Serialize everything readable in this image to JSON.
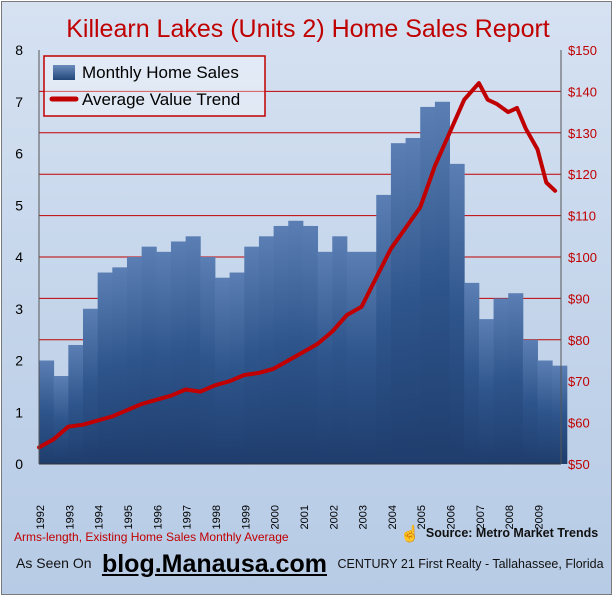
{
  "chart_data": {
    "type": "bar+line",
    "title": "Killearn Lakes (Units 2) Home Sales Report",
    "left_axis": {
      "ylim": [
        0,
        8
      ],
      "ticks": [
        "0",
        "1",
        "2",
        "3",
        "4",
        "5",
        "6",
        "7",
        "8"
      ]
    },
    "right_axis": {
      "ylim": [
        50,
        150
      ],
      "ticks": [
        "$50",
        "$60",
        "$70",
        "$80",
        "$90",
        "$100",
        "$110",
        "$120",
        "$130",
        "$140",
        "$150"
      ]
    },
    "x_axis": {
      "ticks": [
        "1992",
        "1993",
        "1994",
        "1995",
        "1996",
        "1997",
        "1998",
        "1999",
        "2000",
        "2001",
        "2002",
        "2003",
        "2004",
        "2005",
        "2006",
        "2007",
        "2008",
        "2009"
      ],
      "xlim": [
        1992.0,
        2009.8
      ]
    },
    "grid": "horizontal red lines at right-axis ticks",
    "legend": {
      "position": "top-left",
      "items": [
        "Monthly Home Sales",
        "Average Value Trend"
      ]
    },
    "series": [
      {
        "name": "Monthly Home Sales",
        "kind": "bar",
        "axis": "left",
        "color": "#2b4f86",
        "x": [
          1992.0,
          1992.5,
          1993.0,
          1993.5,
          1994.0,
          1994.5,
          1995.0,
          1995.5,
          1996.0,
          1996.5,
          1997.0,
          1997.5,
          1998.0,
          1998.5,
          1999.0,
          1999.5,
          2000.0,
          2000.5,
          2001.0,
          2001.5,
          2002.0,
          2002.5,
          2003.0,
          2003.5,
          2004.0,
          2004.5,
          2005.0,
          2005.5,
          2006.0,
          2006.5,
          2007.0,
          2007.5,
          2008.0,
          2008.5,
          2009.0,
          2009.5
        ],
        "values": [
          2.0,
          1.7,
          2.3,
          3.0,
          3.7,
          3.8,
          4.0,
          4.2,
          4.1,
          4.3,
          4.4,
          4.0,
          3.6,
          3.7,
          4.2,
          4.4,
          4.6,
          4.7,
          4.6,
          4.1,
          4.4,
          4.1,
          4.1,
          5.2,
          6.2,
          6.3,
          6.9,
          7.0,
          5.8,
          3.5,
          2.8,
          3.2,
          3.3,
          2.4,
          2.0,
          1.9
        ]
      },
      {
        "name": "Average Value Trend",
        "kind": "line",
        "axis": "right",
        "color": "#c00000",
        "x": [
          1992.0,
          1992.5,
          1993.0,
          1993.5,
          1994.0,
          1994.5,
          1995.0,
          1995.5,
          1996.0,
          1996.5,
          1997.0,
          1997.5,
          1998.0,
          1998.5,
          1999.0,
          1999.5,
          2000.0,
          2000.5,
          2001.0,
          2001.5,
          2002.0,
          2002.5,
          2003.0,
          2003.5,
          2004.0,
          2004.5,
          2005.0,
          2005.5,
          2006.0,
          2006.5,
          2007.0,
          2007.3,
          2007.6,
          2008.0,
          2008.3,
          2008.6,
          2009.0,
          2009.3,
          2009.6
        ],
        "values": [
          54,
          56,
          59,
          59.5,
          60.5,
          61.5,
          63,
          64.5,
          65.5,
          66.5,
          68,
          67.5,
          69,
          70,
          71.5,
          72,
          73,
          75,
          77,
          79,
          82,
          86,
          88,
          95,
          102,
          107,
          112,
          122,
          130,
          138,
          142,
          138,
          137,
          135,
          136,
          131,
          126,
          118,
          116
        ]
      }
    ]
  },
  "footer": {
    "note": "Arms-length, Existing Home Sales Monthly Average",
    "source": "Source: Metro Market Trends",
    "seen_on": "As Seen On",
    "blog": "blog.Manausa.com",
    "company": "CENTURY 21 First Realty - Tallahassee, Florida",
    "source_icon": "hand-pointer-icon"
  }
}
